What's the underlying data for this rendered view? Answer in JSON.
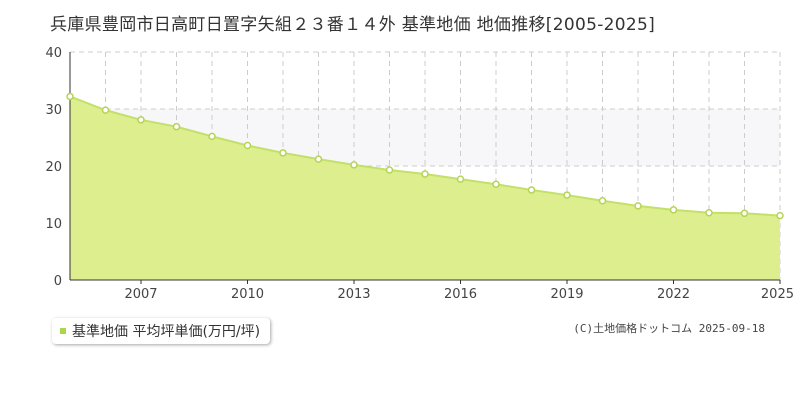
{
  "title": "兵庫県豊岡市日高町日置字矢組２３番１４外 基準地価 地価推移[2005-2025]",
  "legend": {
    "label": "基準地価 平均坪単価(万円/坪)"
  },
  "copyright": "(C)土地価格ドットコム 2025-09-18",
  "colors": {
    "fill": "#dcee8e",
    "line": "#c3e06a",
    "point_stroke": "#b4d455",
    "band": "#f7f7f9",
    "grid": "#cccccc",
    "axis": "#333333",
    "legend_marker": "#a8d84a"
  },
  "chart_data": {
    "type": "area",
    "title": "兵庫県豊岡市日高町日置字矢組２３番１４外 基準地価 地価推移[2005-2025]",
    "xlabel": "",
    "ylabel": "",
    "x": [
      2005,
      2006,
      2007,
      2008,
      2009,
      2010,
      2011,
      2012,
      2013,
      2014,
      2015,
      2016,
      2017,
      2018,
      2019,
      2020,
      2021,
      2022,
      2023,
      2024,
      2025
    ],
    "series": [
      {
        "name": "基準地価 平均坪単価(万円/坪)",
        "values": [
          32.2,
          29.8,
          28.1,
          26.9,
          25.2,
          23.6,
          22.3,
          21.2,
          20.2,
          19.3,
          18.6,
          17.7,
          16.8,
          15.8,
          14.9,
          13.9,
          13.0,
          12.3,
          11.8,
          11.7,
          11.3
        ]
      }
    ],
    "ylim": [
      0,
      40
    ],
    "yticks": [
      0,
      10,
      20,
      30,
      40
    ],
    "xlim": [
      2005,
      2025
    ],
    "xtick_labels": [
      "2007",
      "2010",
      "2013",
      "2016",
      "2019",
      "2022",
      "2025"
    ],
    "grid": true,
    "legend_position": "bottom-left"
  }
}
